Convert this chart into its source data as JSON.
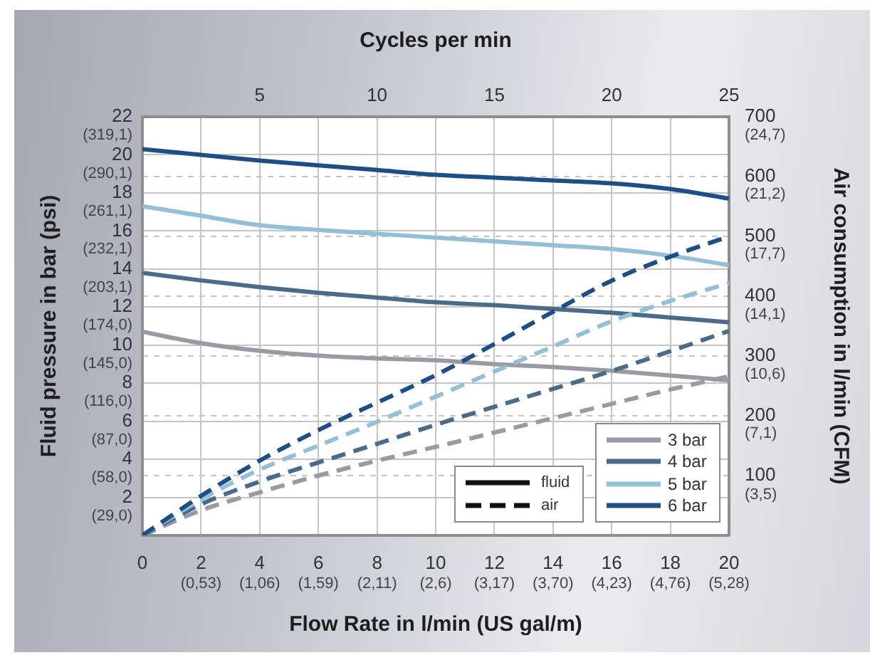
{
  "chart_data": {
    "type": "line",
    "x2label": "Cycles per min",
    "xlabel": "Flow Rate in l/min (US gal/m)",
    "ylabel": "Fluid pressure in bar (psi)",
    "y2label": "Air consumption in l/min (CFM)",
    "x": [
      0,
      2,
      4,
      6,
      8,
      10,
      12,
      14,
      16,
      18,
      20
    ],
    "xlim": [
      0,
      20
    ],
    "xticks": [
      0,
      2,
      4,
      6,
      8,
      10,
      12,
      14,
      16,
      18,
      20
    ],
    "x2lim": [
      0,
      25
    ],
    "x2ticks": [
      5,
      10,
      15,
      20,
      25
    ],
    "ylim": [
      0,
      22
    ],
    "yticks": [
      2,
      4,
      6,
      8,
      10,
      12,
      14,
      16,
      18,
      20,
      22
    ],
    "y2lim": [
      0,
      700
    ],
    "y2ticks": [
      100,
      200,
      300,
      400,
      500,
      600,
      700
    ],
    "y3lim": [
      0,
      24.7
    ],
    "y3ticks": [
      {
        "value": 3.5,
        "label": "(3,5)"
      },
      {
        "value": 7.1,
        "label": "(7,1)"
      },
      {
        "value": 10.6,
        "label": "(10,6)"
      },
      {
        "value": 14.1,
        "label": "(14,1)"
      },
      {
        "value": 17.7,
        "label": "(17,7)"
      },
      {
        "value": 21.2,
        "label": "(21,2)"
      },
      {
        "value": 24.7,
        "label": "(24,7)"
      }
    ],
    "series": [
      {
        "name": "3 bar",
        "color": "#9a9aa4",
        "line_style": "solid",
        "values": [
          10.7,
          10.1,
          9.7,
          9.45,
          9.3,
          9.2,
          9.0,
          8.85,
          8.65,
          8.4,
          8.15
        ]
      },
      {
        "name": "4 bar",
        "color": "#4b6b8a",
        "line_style": "solid",
        "values": [
          13.8,
          13.4,
          13.05,
          12.75,
          12.5,
          12.25,
          12.1,
          11.9,
          11.7,
          11.45,
          11.2
        ]
      },
      {
        "name": "5 bar",
        "color": "#93c0d7",
        "line_style": "solid",
        "values": [
          17.3,
          16.8,
          16.3,
          16.05,
          15.85,
          15.65,
          15.45,
          15.25,
          15.05,
          14.7,
          14.2
        ]
      },
      {
        "name": "6 bar",
        "color": "#1d4e88",
        "line_style": "solid",
        "values": [
          20.3,
          20.0,
          19.7,
          19.45,
          19.2,
          18.95,
          18.8,
          18.65,
          18.5,
          18.2,
          17.7
        ]
      },
      {
        "color": "#9a9aa4",
        "line_style": "dashed",
        "axis": "y2",
        "values": [
          0,
          42,
          72,
          100,
          125,
          148,
          172,
          196,
          220,
          244,
          266
        ]
      },
      {
        "color": "#4b6b8a",
        "line_style": "dashed",
        "axis": "y2",
        "values": [
          0,
          52,
          90,
          122,
          153,
          185,
          215,
          245,
          275,
          308,
          342
        ]
      },
      {
        "color": "#93c0d7",
        "line_style": "dashed",
        "axis": "y2",
        "values": [
          0,
          60,
          110,
          150,
          190,
          232,
          274,
          316,
          358,
          392,
          422
        ]
      },
      {
        "color": "#1d4e88",
        "line_style": "dashed",
        "axis": "y2",
        "values": [
          0,
          66,
          125,
          176,
          222,
          268,
          320,
          374,
          426,
          466,
          500
        ]
      }
    ],
    "annotations": [
      "fluid",
      "air",
      "(0,53)",
      "(1,06)",
      "(1,59)",
      "(2,11)",
      "(2,6)",
      "(3,17)",
      "(3,70)",
      "(4,23)",
      "(4,76)",
      "(5,28)",
      "(29,0)",
      "(58,0)",
      "(87,0)",
      "(116,0)",
      "(145,0)",
      "(174,0)",
      "(203,1)",
      "(232,1)",
      "(261,1)",
      "(290,1)",
      "(319,1)"
    ],
    "grid": true,
    "legend": "bottom right",
    "marker": "none"
  }
}
